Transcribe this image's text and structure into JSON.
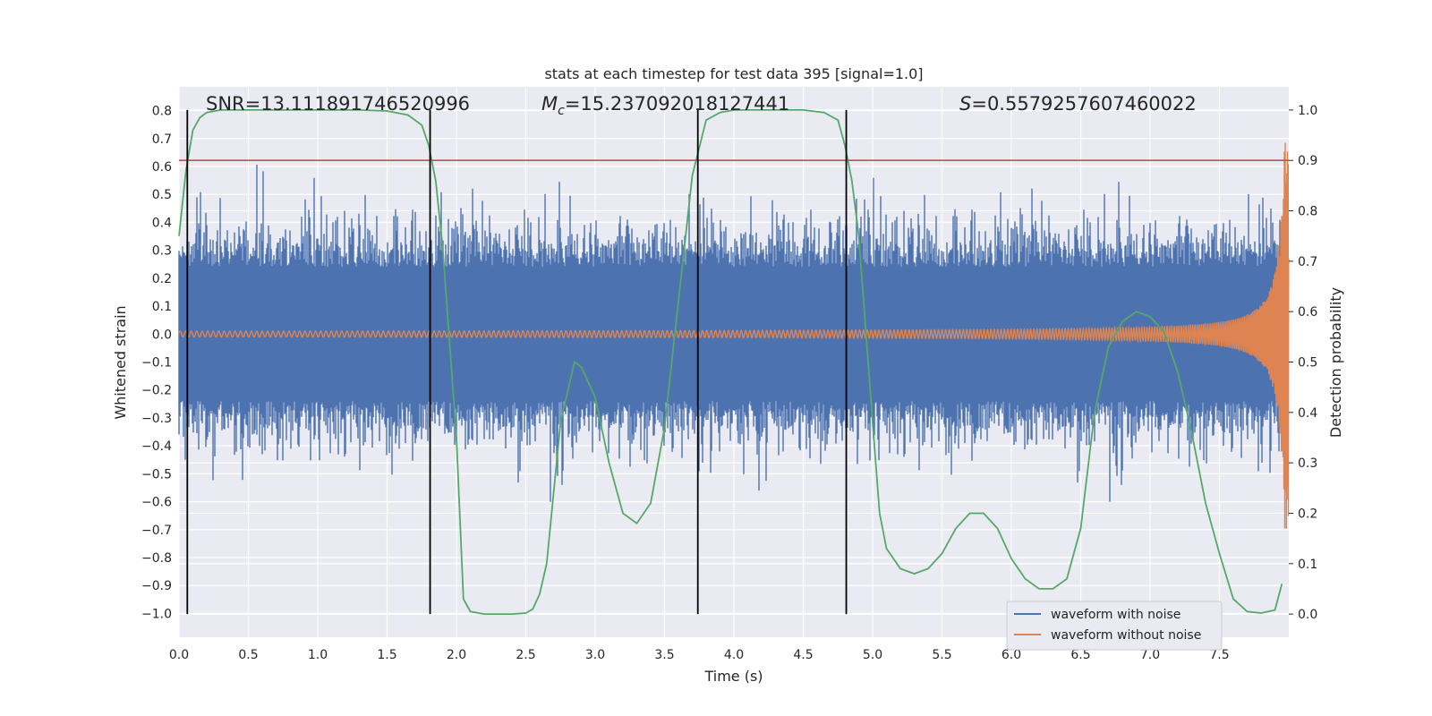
{
  "chart_data": {
    "type": "line",
    "title": "stats at each timestep for test data 395 [signal=1.0]",
    "xlabel": "Time (s)",
    "ylabel": "Whitened strain",
    "y2label": "Detection probability",
    "xlim": [
      0.0,
      8.0
    ],
    "ylim": [
      -1.085,
      0.885
    ],
    "y2lim": [
      -0.046,
      1.046
    ],
    "xticks": [
      "0.0",
      "0.5",
      "1.0",
      "1.5",
      "2.0",
      "2.5",
      "3.0",
      "3.5",
      "4.0",
      "4.5",
      "5.0",
      "5.5",
      "6.0",
      "6.5",
      "7.0",
      "7.5"
    ],
    "yticks": [
      "0.8",
      "0.7",
      "0.6",
      "0.5",
      "0.4",
      "0.3",
      "0.2",
      "0.1",
      "0.0",
      "−0.1",
      "−0.2",
      "−0.3",
      "−0.4",
      "−0.5",
      "−0.6",
      "−0.7",
      "−0.8",
      "−0.9",
      "−1.0"
    ],
    "y2ticks": [
      "1.0",
      "0.9",
      "0.8",
      "0.7",
      "0.6",
      "0.5",
      "0.4",
      "0.3",
      "0.2",
      "0.1",
      "0.0"
    ],
    "grid": true,
    "legend_position": "lower right",
    "annotations": {
      "snr": "SNR=13.111891746520996",
      "mc_symbol": "M",
      "mc_sub": "c",
      "mc_value": "=15.237092018127441",
      "s_symbol": "S",
      "s_value": "=0.5579257607460022"
    },
    "vertical_lines_x": [
      0.06,
      1.81,
      3.74,
      4.81
    ],
    "threshold_y2": 0.9,
    "series": [
      {
        "name": "waveform with noise",
        "color": "#4c72b0",
        "kind": "noise",
        "amplitude_typical": 0.3,
        "amplitude_peak": 0.8
      },
      {
        "name": "waveform without noise",
        "color": "#dd8452",
        "kind": "chirp",
        "amplitude_start": 0.02,
        "amplitude_end": 0.7
      },
      {
        "name": "",
        "color": "#55a868",
        "axis": "right",
        "x": [
          0.0,
          0.05,
          0.1,
          0.15,
          0.2,
          0.3,
          0.4,
          0.5,
          0.7,
          1.0,
          1.3,
          1.5,
          1.65,
          1.75,
          1.8,
          1.85,
          1.9,
          2.0,
          2.05,
          2.1,
          2.2,
          2.4,
          2.5,
          2.55,
          2.6,
          2.65,
          2.75,
          2.85,
          2.9,
          3.0,
          3.1,
          3.2,
          3.3,
          3.4,
          3.5,
          3.6,
          3.7,
          3.8,
          3.9,
          4.0,
          4.2,
          4.5,
          4.65,
          4.75,
          4.8,
          4.85,
          4.9,
          5.0,
          5.05,
          5.1,
          5.2,
          5.3,
          5.4,
          5.5,
          5.6,
          5.7,
          5.8,
          5.9,
          6.0,
          6.1,
          6.2,
          6.3,
          6.4,
          6.5,
          6.6,
          6.7,
          6.8,
          6.9,
          7.0,
          7.1,
          7.2,
          7.3,
          7.4,
          7.5,
          7.6,
          7.7,
          7.8,
          7.9,
          7.95
        ],
        "values": [
          0.75,
          0.88,
          0.96,
          0.985,
          0.995,
          1.0,
          1.0,
          1.0,
          1.0,
          1.0,
          1.0,
          0.998,
          0.99,
          0.97,
          0.93,
          0.86,
          0.73,
          0.35,
          0.03,
          0.005,
          0.0,
          0.0,
          0.002,
          0.01,
          0.04,
          0.1,
          0.38,
          0.5,
          0.49,
          0.43,
          0.3,
          0.2,
          0.18,
          0.22,
          0.37,
          0.62,
          0.87,
          0.98,
          0.995,
          1.0,
          1.0,
          1.0,
          0.995,
          0.98,
          0.93,
          0.86,
          0.75,
          0.38,
          0.2,
          0.13,
          0.09,
          0.08,
          0.09,
          0.12,
          0.17,
          0.2,
          0.2,
          0.17,
          0.11,
          0.07,
          0.05,
          0.05,
          0.07,
          0.17,
          0.4,
          0.53,
          0.58,
          0.6,
          0.59,
          0.56,
          0.48,
          0.36,
          0.22,
          0.12,
          0.03,
          0.005,
          0.002,
          0.008,
          0.06
        ]
      }
    ],
    "threshold_color": "#c44e52",
    "vline_color": "#000000"
  }
}
